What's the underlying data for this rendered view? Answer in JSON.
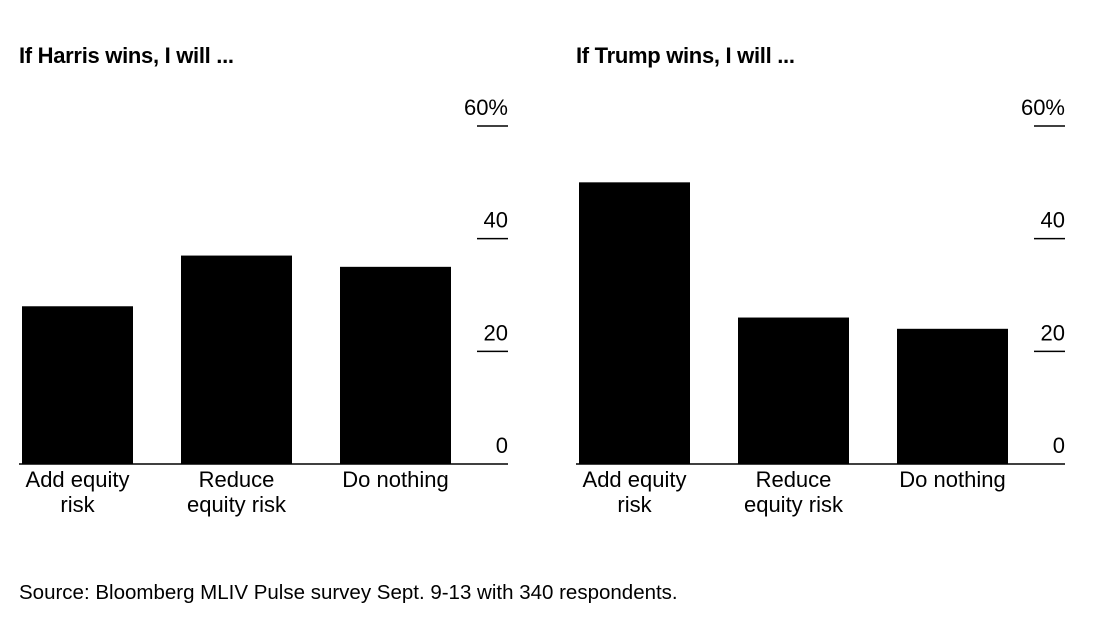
{
  "chart_data": [
    {
      "type": "bar",
      "title": "If Harris wins, I will ...",
      "categories": [
        "Add equity risk",
        "Reduce equity risk",
        "Do nothing"
      ],
      "category_lines": [
        [
          "Add equity",
          "risk"
        ],
        [
          "Reduce",
          "equity risk"
        ],
        [
          "Do nothing"
        ]
      ],
      "values": [
        28,
        37,
        35
      ],
      "ylim": [
        0,
        60
      ],
      "yticks": [
        0,
        20,
        40,
        60
      ],
      "ytick_labels": [
        "0",
        "20",
        "40",
        "60%"
      ],
      "xlabel": "",
      "ylabel": "",
      "bar_color": "#000000",
      "axis_position": "right"
    },
    {
      "type": "bar",
      "title": "If Trump wins, I will ...",
      "categories": [
        "Add equity risk",
        "Reduce equity risk",
        "Do nothing"
      ],
      "category_lines": [
        [
          "Add equity",
          "risk"
        ],
        [
          "Reduce",
          "equity risk"
        ],
        [
          "Do nothing"
        ]
      ],
      "values": [
        50,
        26,
        24
      ],
      "ylim": [
        0,
        60
      ],
      "yticks": [
        0,
        20,
        40,
        60
      ],
      "ytick_labels": [
        "0",
        "20",
        "40",
        "60%"
      ],
      "xlabel": "",
      "ylabel": "",
      "bar_color": "#000000",
      "axis_position": "right"
    }
  ],
  "source": "Source: Bloomberg MLIV Pulse survey Sept. 9-13 with 340 respondents."
}
